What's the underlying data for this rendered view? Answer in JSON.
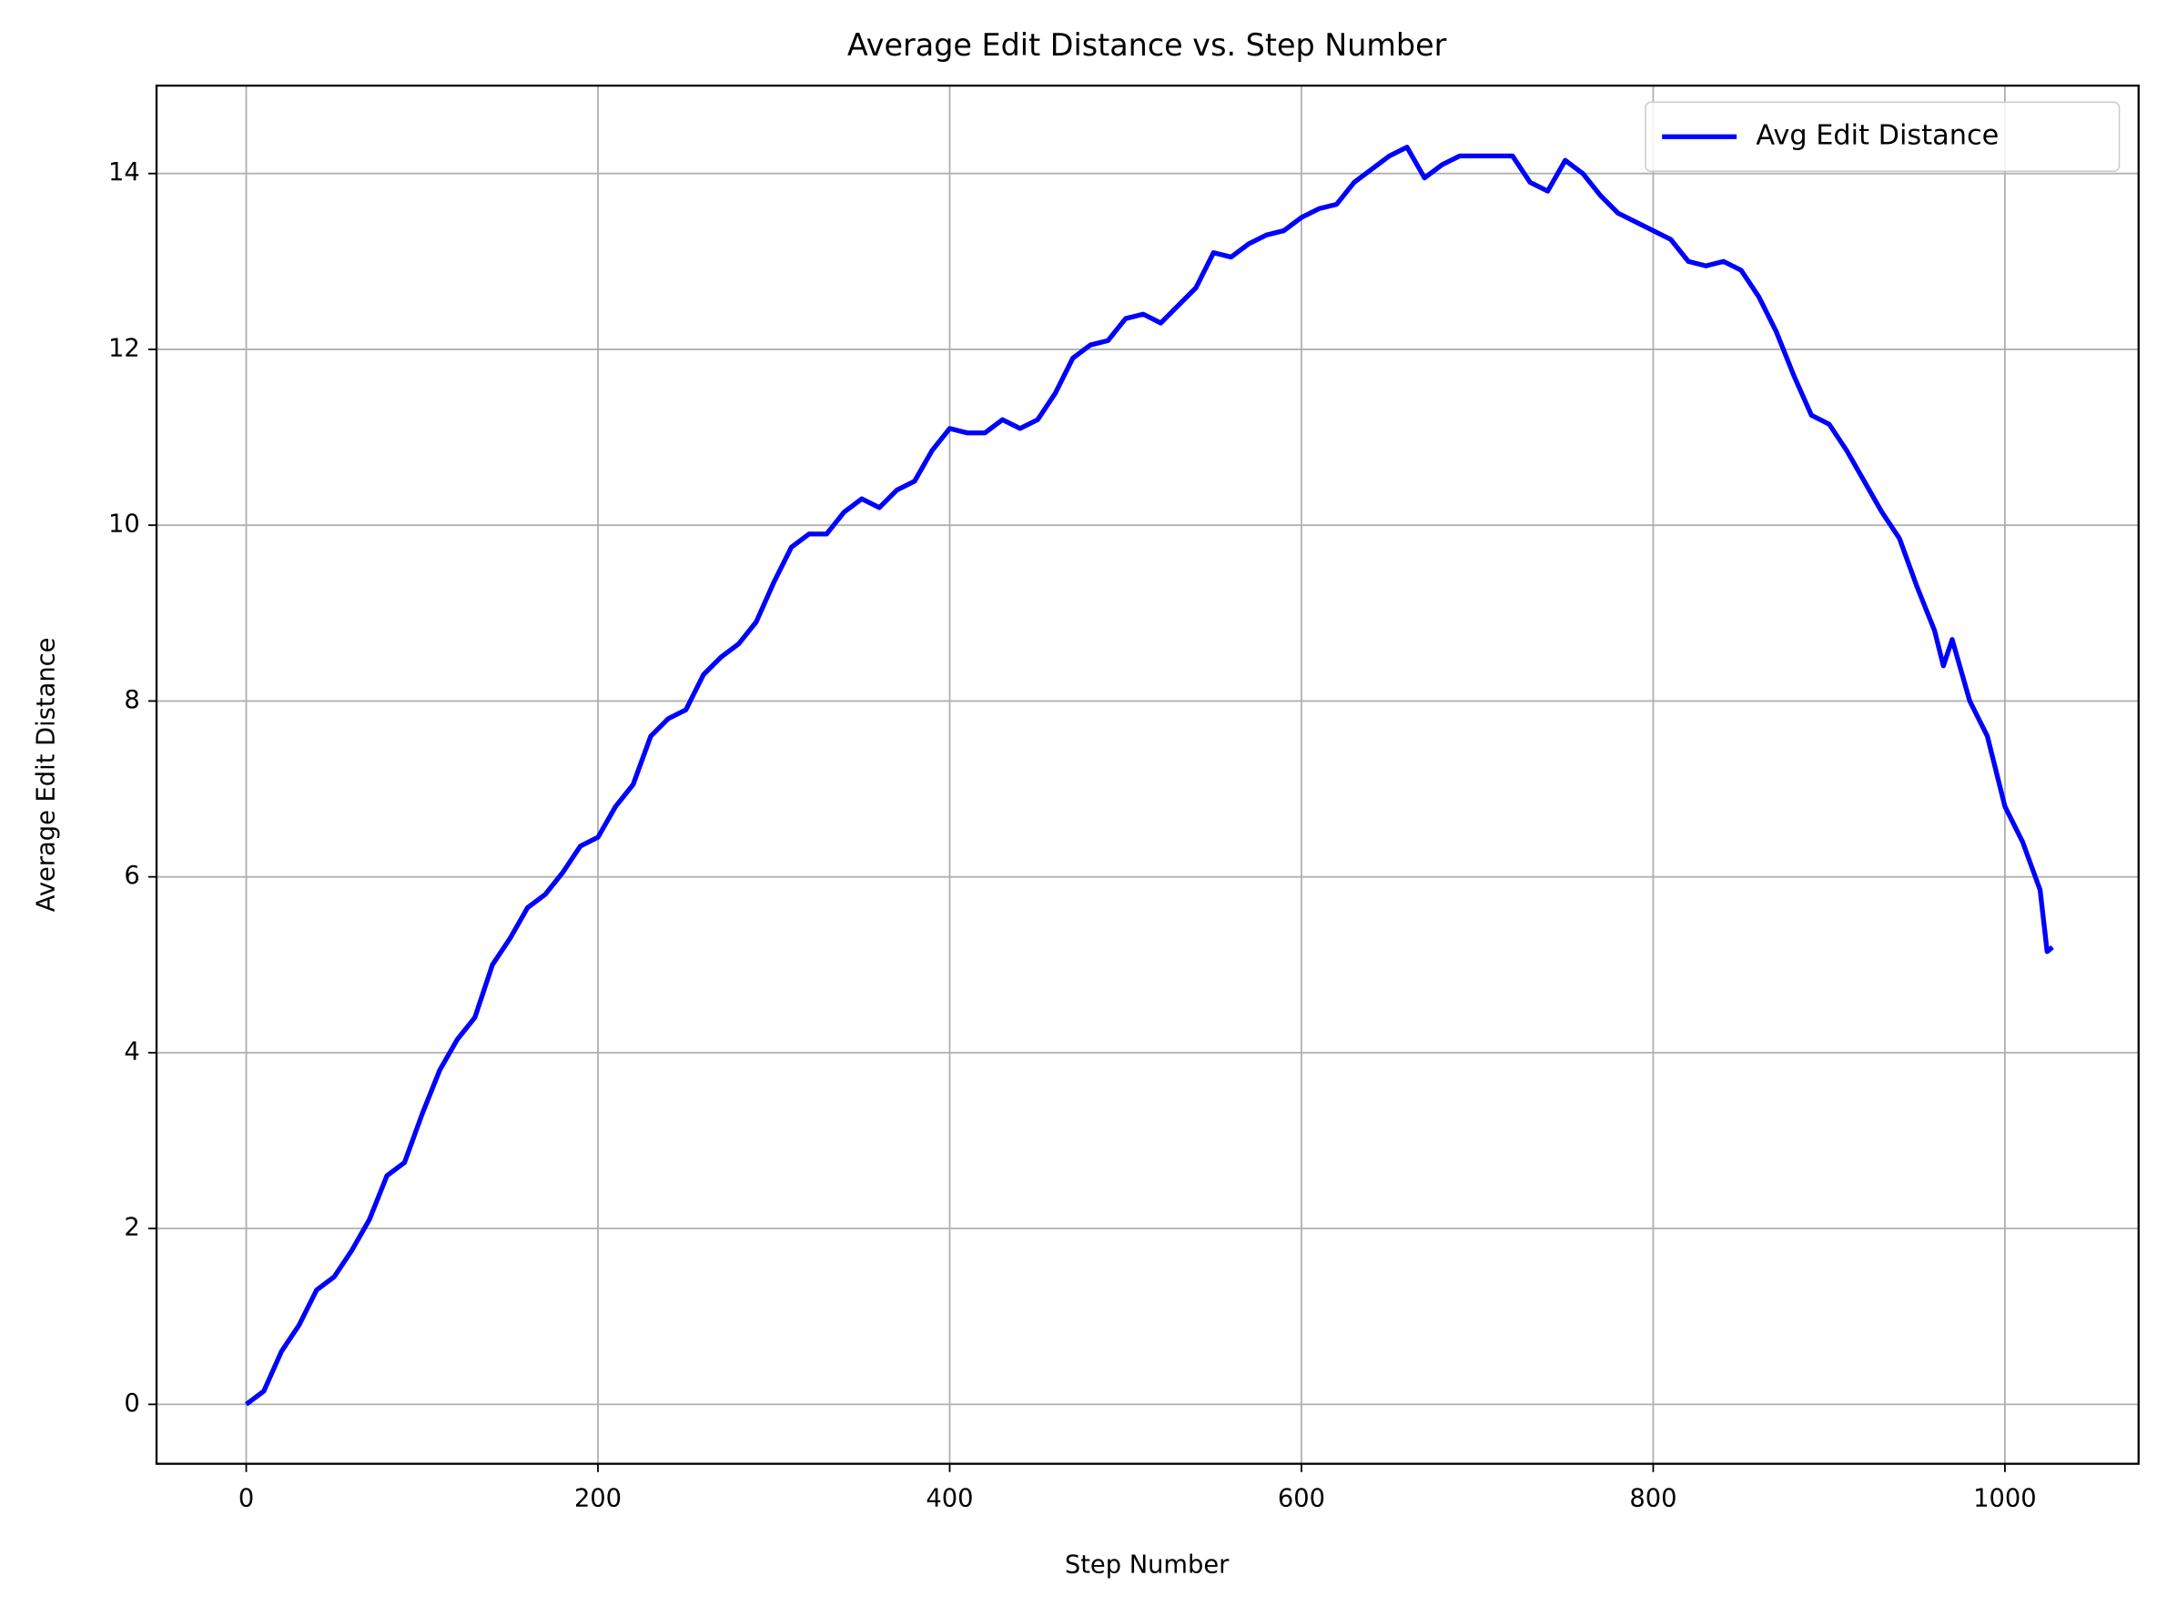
{
  "chart_data": {
    "type": "line",
    "title": "Average Edit Distance vs. Step Number",
    "xlabel": "Step Number",
    "ylabel": "Average Edit Distance",
    "x": [
      0,
      10,
      20,
      30,
      40,
      50,
      60,
      70,
      80,
      90,
      100,
      110,
      120,
      130,
      140,
      150,
      160,
      170,
      180,
      190,
      200,
      210,
      220,
      230,
      240,
      250,
      260,
      270,
      280,
      290,
      300,
      310,
      320,
      330,
      340,
      350,
      360,
      370,
      380,
      390,
      400,
      410,
      420,
      430,
      440,
      450,
      460,
      470,
      480,
      490,
      500,
      510,
      520,
      530,
      540,
      550,
      560,
      570,
      580,
      590,
      600,
      610,
      620,
      630,
      640,
      650,
      660,
      670,
      680,
      690,
      700,
      710,
      720,
      730,
      740,
      750,
      760,
      770,
      780,
      790,
      800,
      810,
      820,
      830,
      840,
      850,
      860,
      870,
      880,
      890,
      900,
      910,
      920,
      930,
      940,
      950,
      960,
      965,
      970,
      980,
      990,
      1000,
      1010,
      1020,
      1024,
      1027
    ],
    "series": [
      {
        "name": "Avg Edit Distance",
        "color": "#0000ff",
        "values": [
          0,
          0.15,
          0.6,
          0.9,
          1.3,
          1.45,
          1.75,
          2.1,
          2.6,
          2.75,
          3.3,
          3.8,
          4.15,
          4.4,
          5.0,
          5.3,
          5.65,
          5.8,
          6.05,
          6.35,
          6.45,
          6.8,
          7.05,
          7.6,
          7.8,
          7.9,
          8.3,
          8.5,
          8.65,
          8.9,
          9.35,
          9.75,
          9.9,
          9.9,
          10.15,
          10.3,
          10.2,
          10.4,
          10.5,
          10.85,
          11.1,
          11.05,
          11.05,
          11.2,
          11.1,
          11.2,
          11.5,
          11.9,
          12.05,
          12.1,
          12.35,
          12.4,
          12.3,
          12.5,
          12.7,
          13.1,
          13.05,
          13.2,
          13.3,
          13.35,
          13.5,
          13.6,
          13.65,
          13.9,
          14.05,
          14.2,
          14.3,
          13.95,
          14.1,
          14.2,
          14.2,
          14.2,
          14.2,
          13.9,
          13.8,
          14.15,
          14.0,
          13.75,
          13.55,
          13.45,
          13.35,
          13.25,
          13.0,
          12.95,
          13.0,
          12.9,
          12.6,
          12.2,
          11.7,
          11.25,
          11.15,
          10.85,
          10.5,
          10.15,
          9.85,
          9.3,
          8.8,
          8.4,
          8.7,
          8.0,
          7.6,
          6.8,
          6.4,
          5.85,
          5.15,
          5.2
        ]
      }
    ],
    "xlim": [
      -51,
      1076
    ],
    "ylim": [
      -0.676,
      15.0
    ],
    "xticks": [
      0,
      200,
      400,
      600,
      800,
      1000
    ],
    "yticks": [
      0,
      2,
      4,
      6,
      8,
      10,
      12,
      14
    ],
    "grid": true,
    "legend": "upper right"
  }
}
